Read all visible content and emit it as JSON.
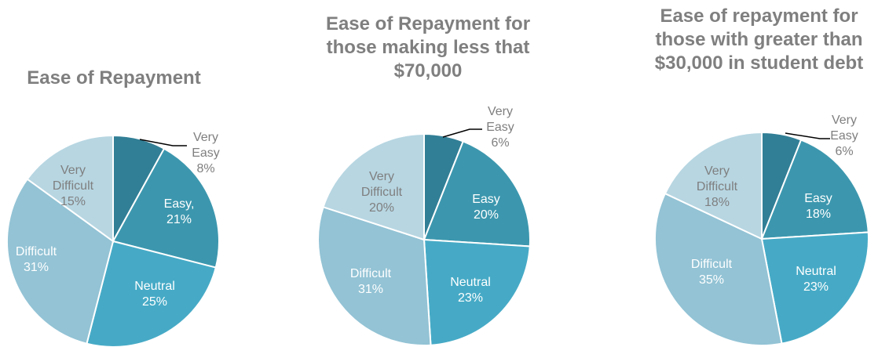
{
  "chart_data": [
    {
      "type": "pie",
      "title": [
        "Ease of Repayment"
      ],
      "slices": [
        {
          "name": "Very Easy",
          "label": [
            "Very",
            "Easy",
            "8%"
          ],
          "value": 8,
          "color": "#317f96"
        },
        {
          "name": "Easy",
          "label": [
            "Easy,",
            "21%"
          ],
          "value": 21,
          "color": "#3c97ae"
        },
        {
          "name": "Neutral",
          "label": [
            "Neutral",
            "25%"
          ],
          "value": 25,
          "color": "#46aac6"
        },
        {
          "name": "Difficult",
          "label": [
            "Difficult",
            "31%"
          ],
          "value": 31,
          "color": "#93c3d5"
        },
        {
          "name": "Very Difficult",
          "label": [
            "Very",
            "Difficult",
            "15%"
          ],
          "value": 15,
          "color": "#b7d6e2"
        }
      ]
    },
    {
      "type": "pie",
      "title": [
        "Ease of Repayment for",
        "those making less that",
        "$70,000"
      ],
      "slices": [
        {
          "name": "Very Easy",
          "label": [
            "Very",
            "Easy",
            "6%"
          ],
          "value": 6,
          "color": "#317f96"
        },
        {
          "name": "Easy",
          "label": [
            "Easy",
            "20%"
          ],
          "value": 20,
          "color": "#3c97ae"
        },
        {
          "name": "Neutral",
          "label": [
            "Neutral",
            "23%"
          ],
          "value": 23,
          "color": "#46aac6"
        },
        {
          "name": "Difficult",
          "label": [
            "Difficult",
            "31%"
          ],
          "value": 31,
          "color": "#93c3d5"
        },
        {
          "name": "Very Difficult",
          "label": [
            "Very",
            "Difficult",
            "20%"
          ],
          "value": 20,
          "color": "#b7d6e2"
        }
      ]
    },
    {
      "type": "pie",
      "title": [
        "Ease of repayment for",
        "those with greater than",
        "$30,000 in student debt"
      ],
      "slices": [
        {
          "name": "Very Easy",
          "label": [
            "Very",
            "Easy",
            "6%"
          ],
          "value": 6,
          "color": "#317f96"
        },
        {
          "name": "Easy",
          "label": [
            "Easy",
            "18%"
          ],
          "value": 18,
          "color": "#3c97ae"
        },
        {
          "name": "Neutral",
          "label": [
            "Neutral",
            "23%"
          ],
          "value": 23,
          "color": "#46aac6"
        },
        {
          "name": "Difficult",
          "label": [
            "Difficult",
            "35%"
          ],
          "value": 35,
          "color": "#93c3d5"
        },
        {
          "name": "Very Difficult",
          "label": [
            "Very",
            "Difficult",
            "18%"
          ],
          "value": 18,
          "color": "#b7d6e2"
        }
      ]
    }
  ]
}
